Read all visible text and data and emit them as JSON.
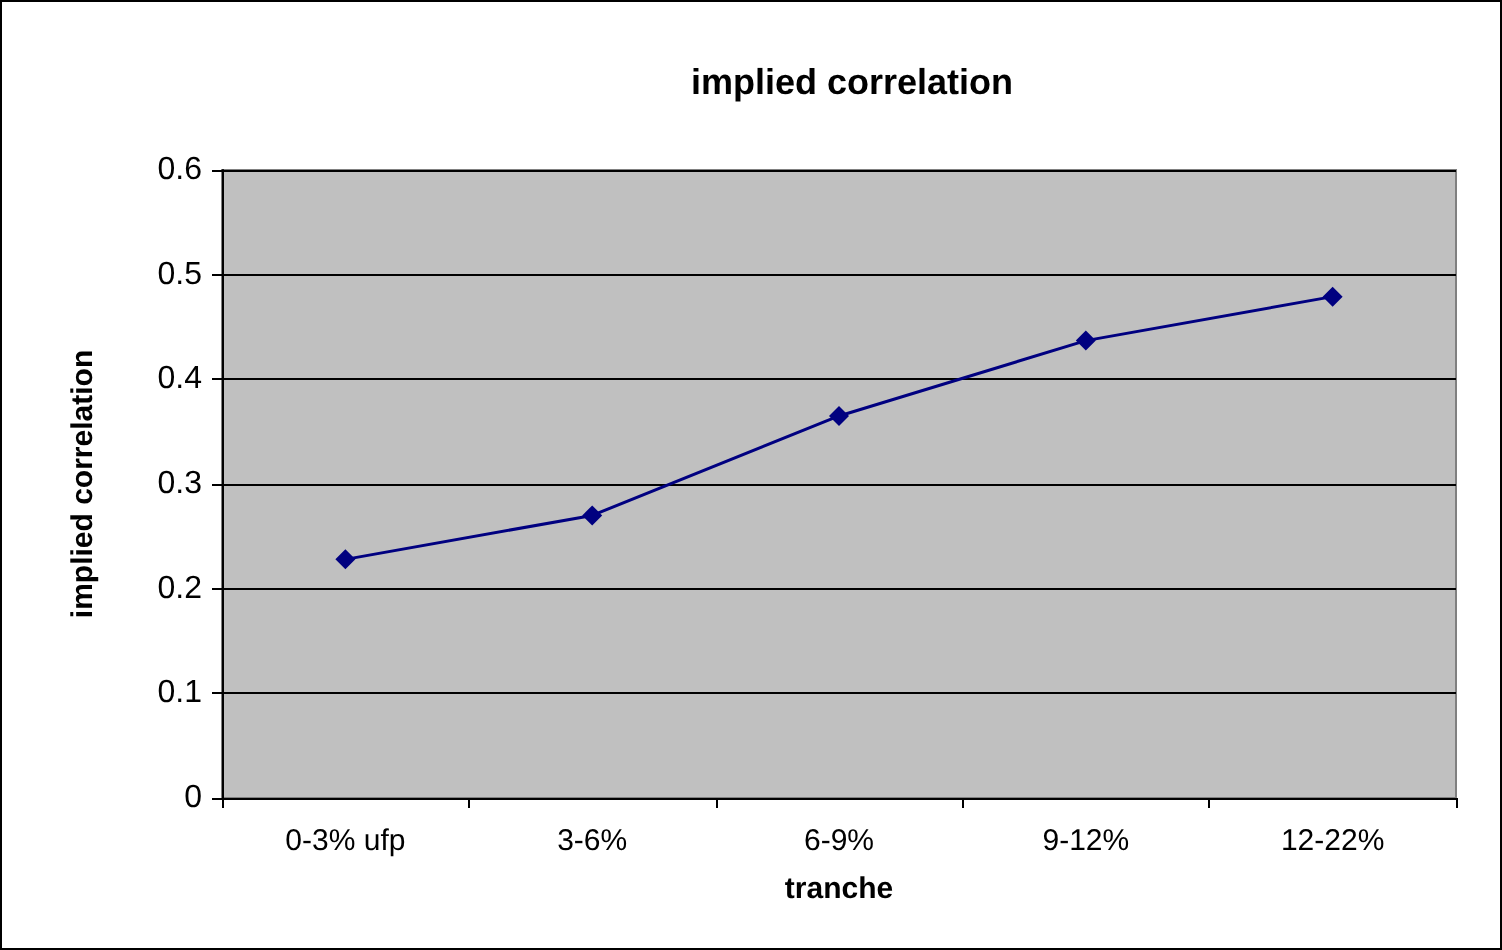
{
  "chart_data": {
    "type": "line",
    "title": "implied correlation",
    "xlabel": "tranche",
    "ylabel": "implied correlation",
    "categories": [
      "0-3% ufp",
      "3-6%",
      "6-9%",
      "9-12%",
      "12-22%"
    ],
    "series": [
      {
        "color": "#000080",
        "values": [
          0.228,
          0.27,
          0.365,
          0.437,
          0.479
        ]
      }
    ],
    "ylim": [
      0,
      0.6
    ],
    "yticks": [
      0,
      0.1,
      0.2,
      0.3,
      0.4,
      0.5,
      0.6
    ],
    "grid": "y",
    "marker": "diamond",
    "line_style": "solid"
  }
}
